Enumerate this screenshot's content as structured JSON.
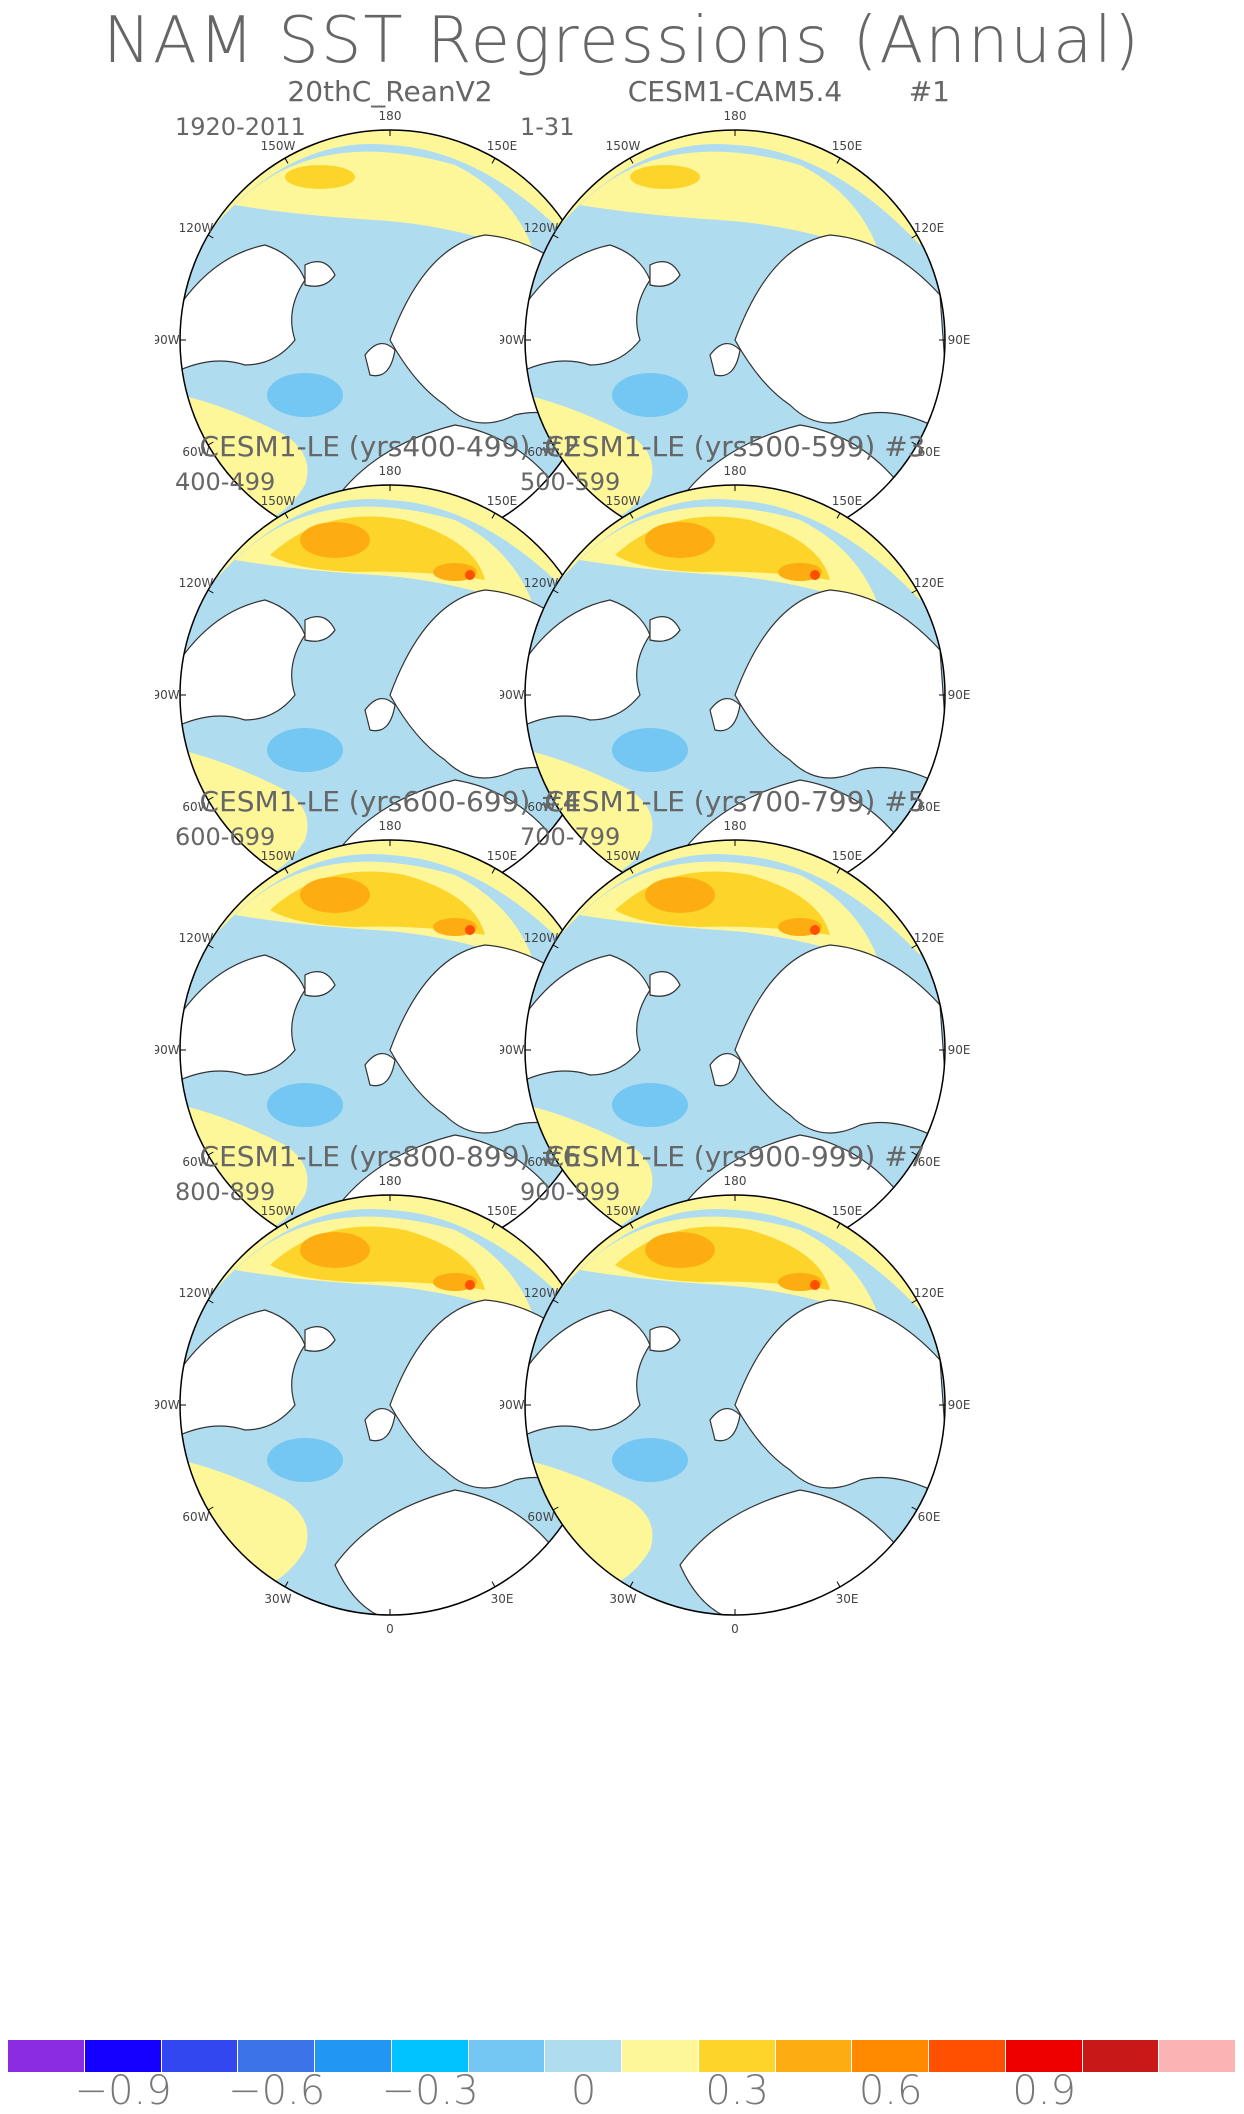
{
  "title": "NAM SST Regressions (Annual)",
  "lon_labels": [
    "180",
    "150E",
    "120E",
    "90E",
    "60E",
    "30E",
    "0",
    "30W",
    "60W",
    "90W",
    "120W",
    "150W"
  ],
  "panels": [
    {
      "title": "20thC_ReanV2",
      "subtitle": "1920-2011",
      "number": ""
    },
    {
      "title": "CESM1-CAM5.4",
      "subtitle": "1-31",
      "number": "#1"
    },
    {
      "title": "CESM1-LE (yrs400-499) #2",
      "subtitle": "400-499",
      "number": ""
    },
    {
      "title": "CESM1-LE (yrs500-599) #3",
      "subtitle": "500-599",
      "number": ""
    },
    {
      "title": "CESM1-LE (yrs600-699) #4",
      "subtitle": "600-699",
      "number": ""
    },
    {
      "title": "CESM1-LE (yrs700-799) #5",
      "subtitle": "700-799",
      "number": ""
    },
    {
      "title": "CESM1-LE (yrs800-899) #6",
      "subtitle": "800-899",
      "number": ""
    },
    {
      "title": "CESM1-LE (yrs900-999) #7",
      "subtitle": "900-999",
      "number": ""
    }
  ],
  "colorbar": {
    "colors": [
      "#8b2be2",
      "#1500ff",
      "#3247f0",
      "#3c73e8",
      "#2196f3",
      "#00c3ff",
      "#74c7f2",
      "#b0dcf0",
      "#fdf79a",
      "#fdd52a",
      "#fdad12",
      "#ff8a00",
      "#ff4f00",
      "#ee0000",
      "#c81818",
      "#fbb3b3"
    ],
    "labels": [
      "−0.9",
      "−0.6",
      "−0.3",
      "0",
      "0.3",
      "0.6",
      "0.9"
    ]
  },
  "palette": {
    "ocean_neg_light": "#b0dcf0",
    "ocean_neg": "#74c7f2",
    "ocean_pos_light": "#fdf79a",
    "ocean_pos": "#fdd52a",
    "ocean_pos_strong": "#fdad12",
    "ocean_pos_hot": "#ff4f00",
    "land": "#ffffff",
    "coast": "#333333"
  }
}
